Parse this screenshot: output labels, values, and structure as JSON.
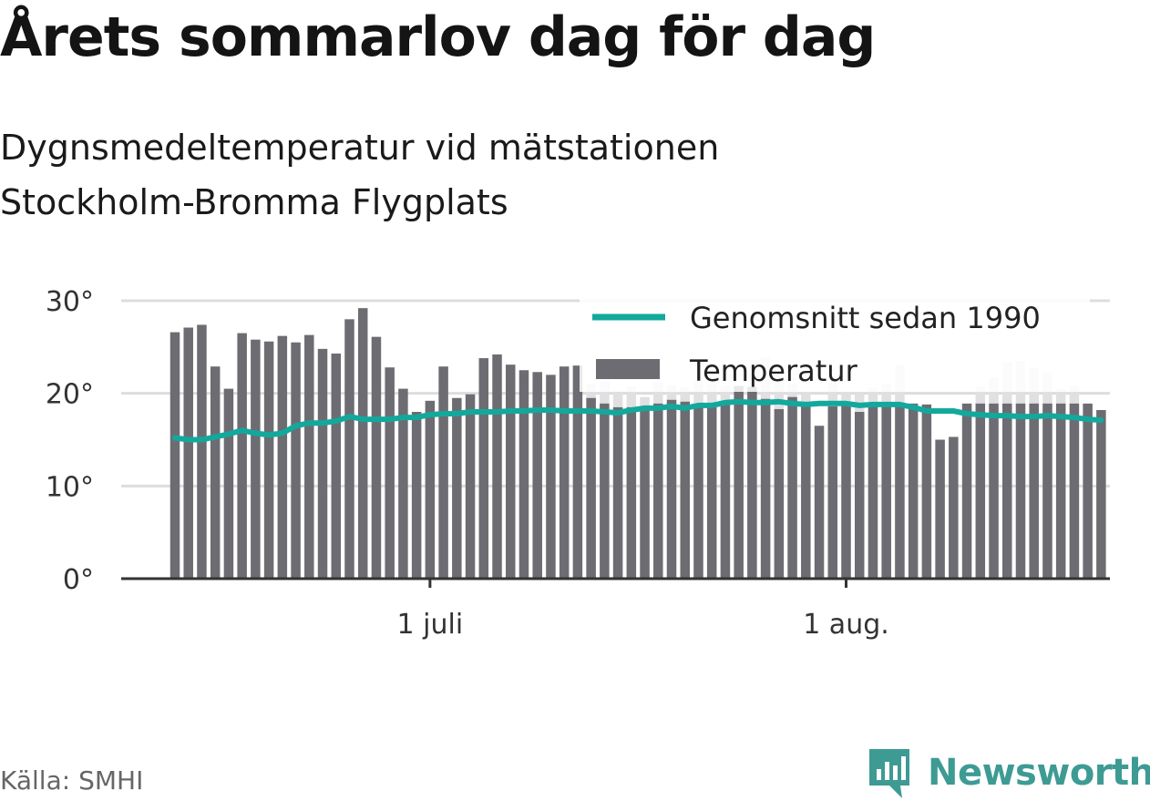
{
  "title": "Årets sommarlov dag för dag",
  "subtitle": "Dygnsmedeltemperatur vid mätstationen Stockholm-Bromma Flygplats",
  "source": "Källa: SMHI",
  "brand": {
    "name": "Newsworthy",
    "icon": "newsworthy-logo-icon",
    "color": "#3d9b94"
  },
  "colors": {
    "bars": "#6d6c72",
    "future_bars": "#e0e0e2",
    "average_line": "#12a99c",
    "grid": "#dddddd",
    "axis": "#333333"
  },
  "chart_data": {
    "type": "bar",
    "title": "Årets sommarlov dag för dag",
    "subtitle": "Dygnsmedeltemperatur vid mätstationen Stockholm-Bromma Flygplats",
    "xlabel": "",
    "ylabel": "",
    "ylim": [
      0,
      30
    ],
    "y_ticks": [
      "0°",
      "10°",
      "20°",
      "30°"
    ],
    "x_ticks": [
      {
        "label": "1 juli",
        "date": "2018-07-01"
      },
      {
        "label": "1 aug.",
        "date": "2018-08-01"
      }
    ],
    "grid": true,
    "legend": {
      "position": "top-right",
      "entries": [
        "Genomsnitt sedan 1990",
        "Temperatur"
      ]
    },
    "x": [
      "2018-06-12",
      "2018-06-13",
      "2018-06-14",
      "2018-06-15",
      "2018-06-16",
      "2018-06-17",
      "2018-06-18",
      "2018-06-19",
      "2018-06-20",
      "2018-06-21",
      "2018-06-22",
      "2018-06-23",
      "2018-06-24",
      "2018-06-25",
      "2018-06-26",
      "2018-06-27",
      "2018-06-28",
      "2018-06-29",
      "2018-06-30",
      "2018-07-01",
      "2018-07-02",
      "2018-07-03",
      "2018-07-04",
      "2018-07-05",
      "2018-07-06",
      "2018-07-07",
      "2018-07-08",
      "2018-07-09",
      "2018-07-10",
      "2018-07-11",
      "2018-07-12",
      "2018-07-13",
      "2018-07-14",
      "2018-07-15",
      "2018-07-16",
      "2018-07-17",
      "2018-07-18",
      "2018-07-19",
      "2018-07-20",
      "2018-07-21",
      "2018-07-22",
      "2018-07-23",
      "2018-07-24",
      "2018-07-25",
      "2018-07-26",
      "2018-07-27",
      "2018-07-28",
      "2018-07-29",
      "2018-07-30",
      "2018-07-31",
      "2018-08-01",
      "2018-08-02",
      "2018-08-03",
      "2018-08-04",
      "2018-08-05",
      "2018-08-06",
      "2018-08-07",
      "2018-08-08",
      "2018-08-09",
      "2018-08-10",
      "2018-08-11",
      "2018-08-12",
      "2018-08-13",
      "2018-08-14",
      "2018-08-15",
      "2018-08-16",
      "2018-08-17",
      "2018-08-18",
      "2018-08-19",
      "2018-08-20"
    ],
    "series": [
      {
        "name": "Temperatur",
        "values": [
          26.6,
          27.1,
          27.4,
          22.9,
          20.5,
          26.5,
          25.8,
          25.6,
          26.2,
          25.5,
          26.3,
          24.8,
          24.3,
          28.0,
          29.2,
          26.1,
          22.8,
          20.5,
          18.0,
          19.2,
          22.9,
          19.5,
          19.9,
          23.8,
          24.2,
          23.1,
          22.5,
          22.3,
          22.0,
          22.9,
          23.0,
          19.5,
          18.9,
          18.5,
          18.5,
          18.6,
          18.9,
          19.3,
          19.1,
          18.8,
          18.6,
          19.0,
          20.8,
          20.7,
          19.4,
          18.3,
          19.6,
          18.9,
          16.5,
          18.6,
          18.8,
          18.0,
          18.8,
          19.0,
          18.9,
          18.9,
          18.8,
          15.0,
          15.3,
          18.9,
          18.9,
          18.9,
          18.9,
          18.9,
          18.9,
          18.9,
          18.9,
          18.9,
          18.9,
          18.2
        ]
      },
      {
        "name": "Genomsnitt sedan 1990",
        "values": [
          15.2,
          15.0,
          15.0,
          15.3,
          15.6,
          16.0,
          15.7,
          15.5,
          15.7,
          16.5,
          16.8,
          16.8,
          17.0,
          17.5,
          17.2,
          17.2,
          17.2,
          17.4,
          17.4,
          17.7,
          17.8,
          17.8,
          18.0,
          18.0,
          18.0,
          18.1,
          18.1,
          18.2,
          18.2,
          18.1,
          18.1,
          18.1,
          18.0,
          17.9,
          18.2,
          18.4,
          18.4,
          18.6,
          18.4,
          18.7,
          18.7,
          19.0,
          19.1,
          19.0,
          19.0,
          19.1,
          18.9,
          18.8,
          18.9,
          18.9,
          18.9,
          18.7,
          18.8,
          18.8,
          18.8,
          18.5,
          18.1,
          18.1,
          18.1,
          17.8,
          17.7,
          17.6,
          17.6,
          17.5,
          17.5,
          17.6,
          17.5,
          17.4,
          17.2,
          17.1
        ]
      }
    ],
    "future_values": [
      null,
      null,
      null,
      null,
      null,
      null,
      null,
      null,
      null,
      null,
      null,
      null,
      null,
      null,
      null,
      null,
      null,
      null,
      null,
      null,
      null,
      null,
      null,
      null,
      null,
      null,
      null,
      null,
      null,
      null,
      null,
      21.0,
      21.3,
      20.3,
      20.7,
      19.6,
      21.2,
      20.9,
      20.6,
      21.4,
      21.0,
      20.8,
      20.8,
      20.6,
      23.9,
      21.8,
      21.0,
      20.0,
      null,
      21.1,
      20.0,
      20.0,
      20.6,
      21.0,
      23.1,
      null,
      null,
      null,
      null,
      null,
      20.7,
      21.7,
      23.4,
      23.5,
      22.8,
      22.2,
      20.5,
      20.8,
      null,
      null
    ]
  }
}
